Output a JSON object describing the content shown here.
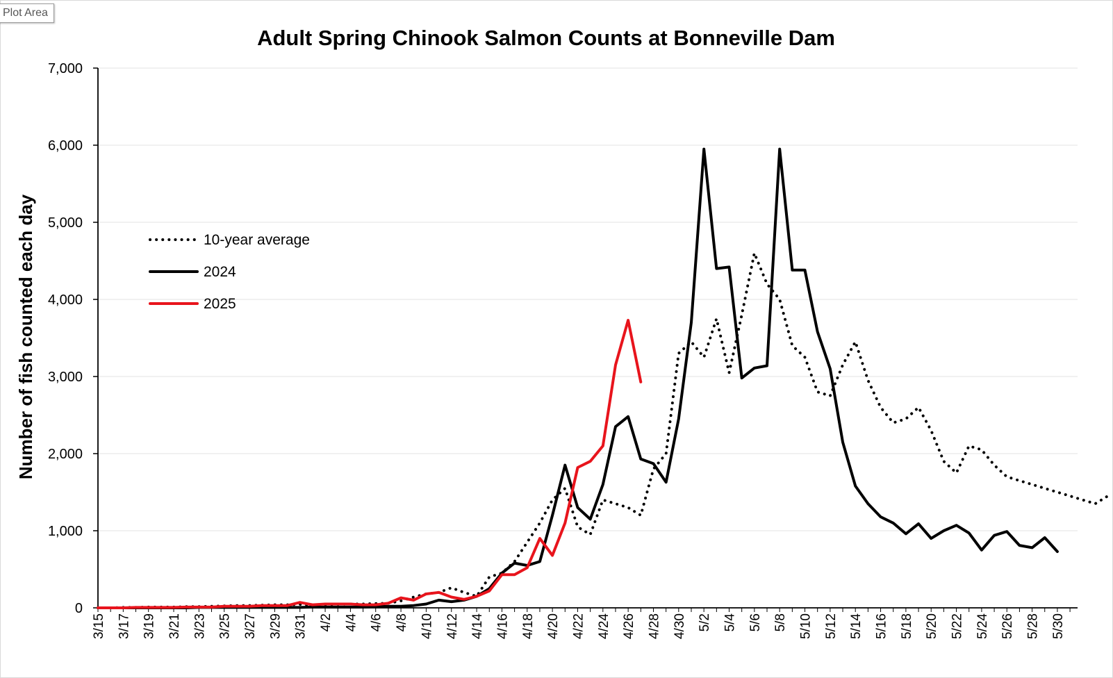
{
  "tooltip": {
    "label": "Plot Area"
  },
  "chart_data": {
    "type": "line",
    "title": "Adult Spring Chinook Salmon Counts at Bonneville Dam",
    "ylabel": "Number of fish counted each day",
    "xlabel": "",
    "ylim": [
      0,
      7000
    ],
    "yticks": [
      0,
      1000,
      2000,
      3000,
      4000,
      5000,
      6000,
      7000
    ],
    "ytick_labels": [
      "0",
      "1,000",
      "2,000",
      "3,000",
      "4,000",
      "5,000",
      "6,000",
      "7,000"
    ],
    "grid": "horizontal",
    "legend_position": "upper-left",
    "x_start": "3/15",
    "x_end": "5/31",
    "x_tick_labels": [
      "3/15",
      "3/17",
      "3/19",
      "3/21",
      "3/23",
      "3/25",
      "3/27",
      "3/29",
      "3/31",
      "4/2",
      "4/4",
      "4/6",
      "4/8",
      "4/10",
      "4/12",
      "4/14",
      "4/16",
      "4/18",
      "4/20",
      "4/22",
      "4/24",
      "4/26",
      "4/28",
      "4/30",
      "5/2",
      "5/4",
      "5/6",
      "5/8",
      "5/10",
      "5/12",
      "5/14",
      "5/16",
      "5/18",
      "5/20",
      "5/22",
      "5/24",
      "5/26",
      "5/28",
      "5/30"
    ],
    "series": [
      {
        "name": "10-year average",
        "style": "dotted",
        "color": "#000000",
        "values": [
          0,
          0,
          5,
          5,
          10,
          10,
          10,
          15,
          15,
          20,
          25,
          30,
          30,
          35,
          40,
          40,
          45,
          30,
          40,
          45,
          50,
          50,
          55,
          60,
          90,
          140,
          180,
          200,
          260,
          200,
          150,
          400,
          450,
          600,
          850,
          1100,
          1400,
          1550,
          1050,
          950,
          1400,
          1350,
          1300,
          1200,
          1800,
          2000,
          3300,
          3450,
          3250,
          3750,
          3050,
          3800,
          4600,
          4200,
          4000,
          3400,
          3250,
          2800,
          2750,
          3150,
          3450,
          2950,
          2600,
          2400,
          2450,
          2600,
          2300,
          1900,
          1750,
          2100,
          2050,
          1850,
          1700,
          1650,
          1600,
          1550,
          1500,
          1450,
          1400,
          1350,
          1450
        ]
      },
      {
        "name": "2024",
        "style": "solid",
        "color": "#000000",
        "values": [
          0,
          0,
          0,
          0,
          0,
          0,
          0,
          0,
          5,
          5,
          5,
          5,
          5,
          5,
          5,
          5,
          5,
          10,
          10,
          10,
          10,
          10,
          15,
          20,
          20,
          30,
          50,
          100,
          80,
          100,
          150,
          250,
          450,
          580,
          550,
          600,
          1200,
          1850,
          1300,
          1150,
          1600,
          2350,
          2480,
          1930,
          1870,
          1630,
          2450,
          3700,
          5950,
          4400,
          4420,
          2980,
          3110,
          3140,
          5950,
          4380,
          4380,
          3580,
          3100,
          2150,
          1580,
          1350,
          1180,
          1100,
          960,
          1090,
          900,
          1000,
          1070,
          970,
          750,
          940,
          990,
          810,
          780,
          910,
          730
        ]
      },
      {
        "name": "2025",
        "style": "solid",
        "color": "#e8141c",
        "values": [
          0,
          0,
          0,
          5,
          5,
          5,
          5,
          10,
          10,
          10,
          20,
          20,
          20,
          30,
          30,
          30,
          70,
          40,
          50,
          50,
          50,
          40,
          40,
          60,
          130,
          100,
          180,
          200,
          140,
          110,
          150,
          220,
          430,
          430,
          520,
          900,
          680,
          1100,
          1820,
          1900,
          2100,
          3150,
          3730,
          2930
        ]
      }
    ]
  }
}
